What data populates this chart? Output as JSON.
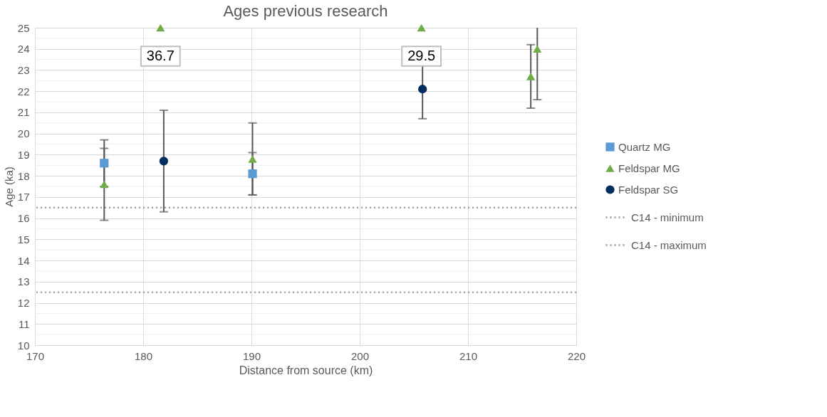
{
  "chart_data": {
    "type": "scatter",
    "title": "Ages previous research",
    "xlabel": "Distance from source (km)",
    "ylabel": "Age (ka)",
    "series": [
      {
        "name": "Quartz MG",
        "color": "#5b9bd5",
        "marker": "square",
        "x": [
          176.4,
          190.1
        ],
        "values": [
          18.6,
          18.1
        ],
        "errors": [
          1.1,
          1.0
        ]
      },
      {
        "name": "Feldspar MG",
        "color": "#70ad47",
        "marker": "triangle",
        "x": [
          176.4,
          181.6,
          190.1,
          205.7,
          215.8,
          216.4
        ],
        "values": [
          17.6,
          null,
          18.8,
          null,
          22.7,
          24.0
        ],
        "errors": [
          1.7,
          null,
          1.7,
          null,
          1.5,
          2.4
        ]
      },
      {
        "name": "Feldspar SG",
        "color": "#002f5f",
        "marker": "circle",
        "x": [
          181.9,
          205.8
        ],
        "values": [
          18.7,
          22.1
        ],
        "errors": [
          2.4,
          1.4
        ]
      }
    ],
    "annotations": [
      {
        "text": "36.7",
        "x": 181.6,
        "y": 25
      },
      {
        "text": "29.5",
        "x": 205.7,
        "y": 25
      }
    ],
    "ref_lines": [
      {
        "axis": "y",
        "value": 16.5,
        "label": "C14 - minimum",
        "color": "#a6a6a6",
        "line_style": "dotted"
      },
      {
        "axis": "y",
        "value": 12.5,
        "label": "C14 - maximum",
        "color": "#a6a6a6",
        "line_style": "dotted"
      }
    ],
    "xlim": [
      170,
      220
    ],
    "xticks": [
      170,
      180,
      190,
      200,
      210,
      220
    ],
    "ylim": [
      10,
      25
    ],
    "yticks": [
      10,
      11,
      12,
      13,
      14,
      15,
      16,
      17,
      18,
      19,
      20,
      21,
      22,
      23,
      24,
      25
    ],
    "grid": true,
    "legend": "right"
  }
}
